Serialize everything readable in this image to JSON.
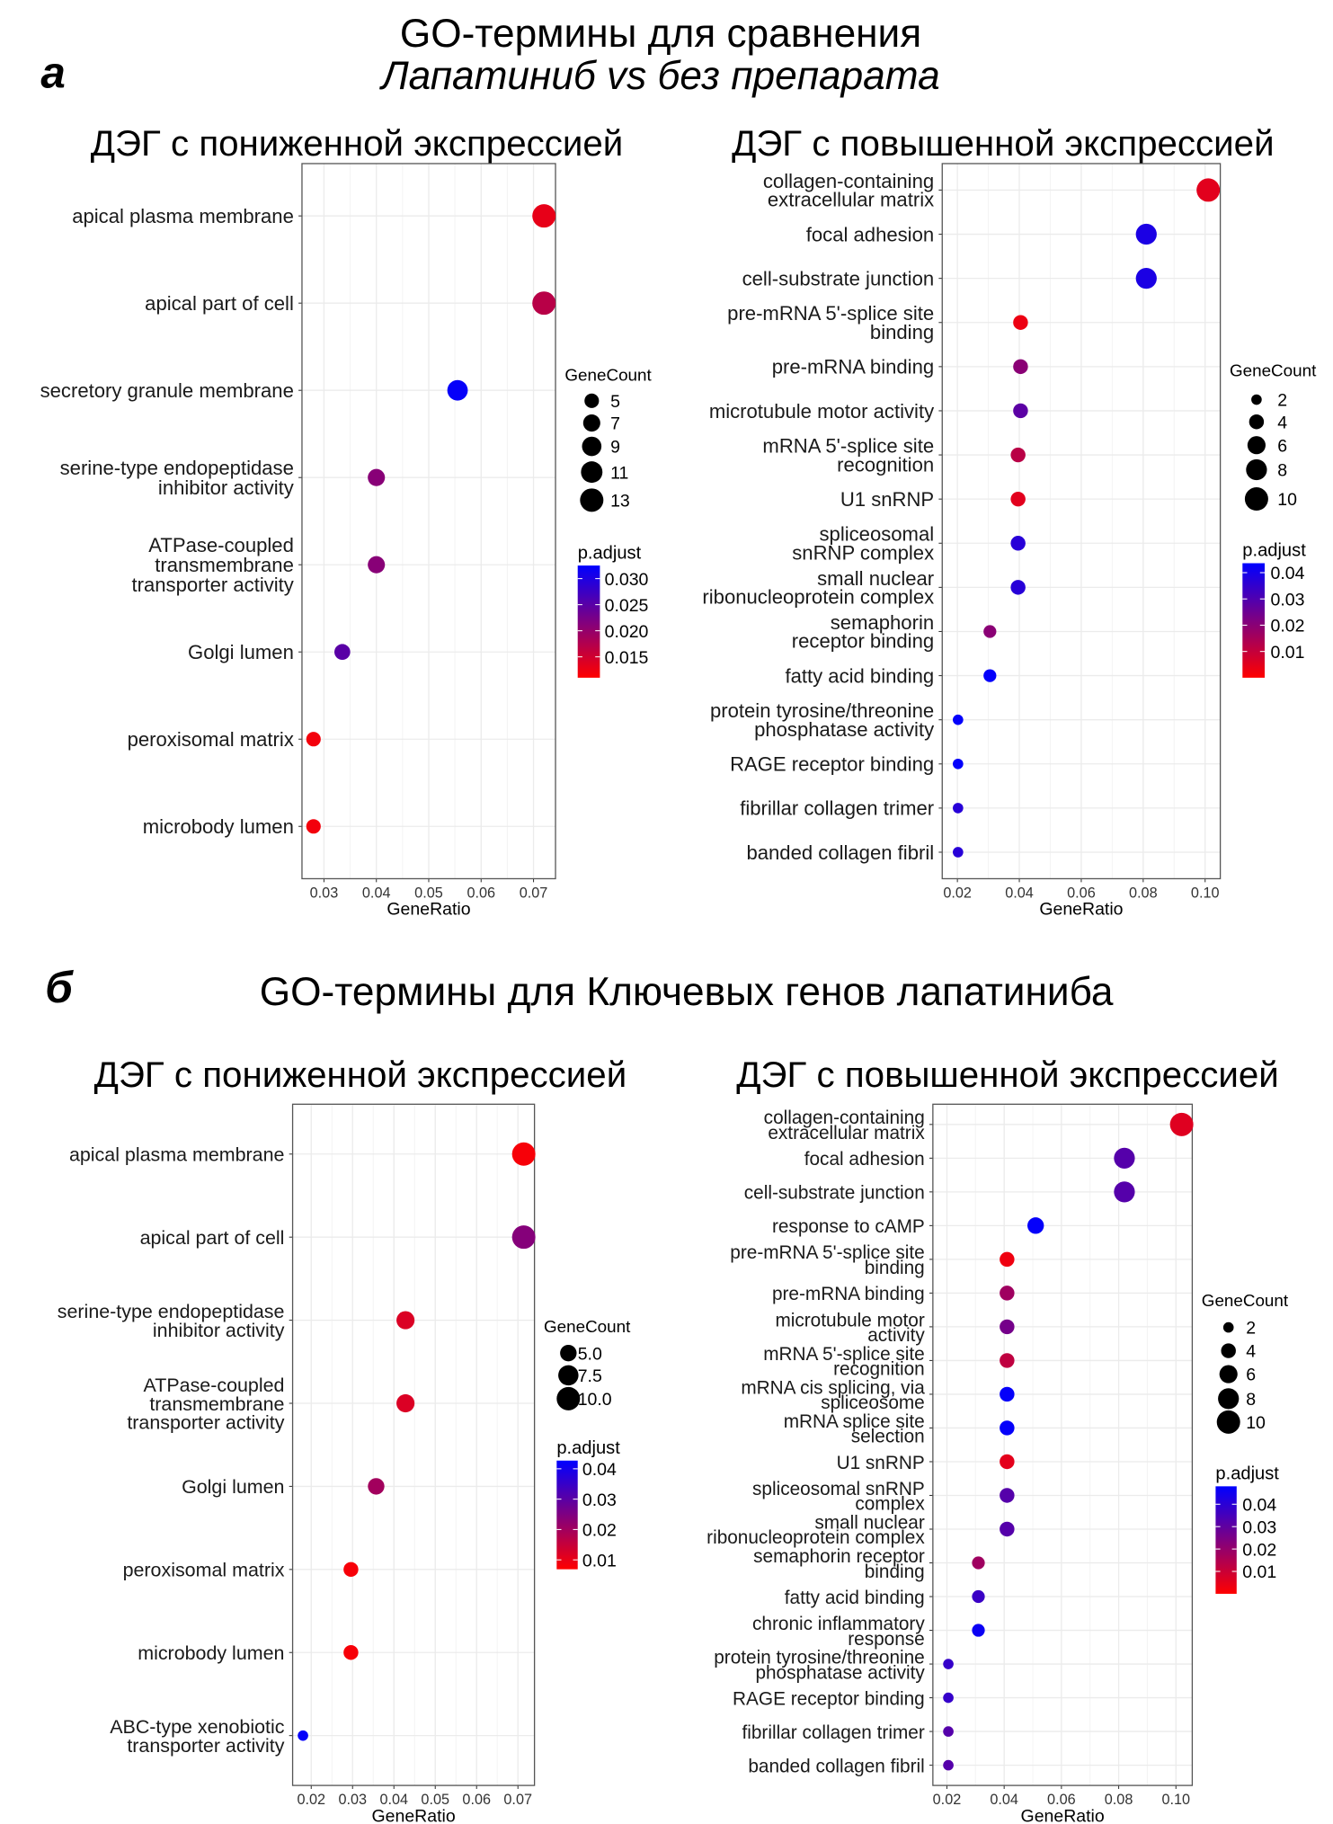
{
  "header_a": {
    "label": "а",
    "line1": "GO-термины для сравнения",
    "line2": "Лапатиниб vs без препарата"
  },
  "header_b": {
    "label": "б",
    "title": "GO-термины для Ключевых генов лапатиниба"
  },
  "colors": {
    "low": "#FF0000",
    "high": "#0000FF",
    "grid": "#EBEBEB",
    "border": "#555555"
  },
  "chart_data": [
    {
      "type": "scatter",
      "section": "а",
      "title": "ДЭГ с пониженной экспрессией",
      "xlabel": "GeneRatio",
      "xlim": [
        0.0258,
        0.0742
      ],
      "xticks": [
        0.03,
        0.04,
        0.05,
        0.06,
        0.07
      ],
      "xtick_labels": [
        "0.03",
        "0.04",
        "0.05",
        "0.06",
        "0.07"
      ],
      "grid": true,
      "points": [
        {
          "term": "apical plasma membrane",
          "gene_ratio": 0.072,
          "gene_count": 13,
          "p_adjust": 0.013
        },
        {
          "term": "apical part of cell",
          "gene_ratio": 0.072,
          "gene_count": 13,
          "p_adjust": 0.017
        },
        {
          "term": "secretory granule membrane",
          "gene_ratio": 0.0555,
          "gene_count": 10,
          "p_adjust": 0.032
        },
        {
          "term": "serine-type endopeptidase\ninhibitor activity",
          "gene_ratio": 0.04,
          "gene_count": 7,
          "p_adjust": 0.021
        },
        {
          "term": "ATPase-coupled\ntransmembrane\ntransporter activity",
          "gene_ratio": 0.04,
          "gene_count": 7,
          "p_adjust": 0.021
        },
        {
          "term": "Golgi lumen",
          "gene_ratio": 0.0335,
          "gene_count": 6,
          "p_adjust": 0.025
        },
        {
          "term": "peroxisomal matrix",
          "gene_ratio": 0.028,
          "gene_count": 5,
          "p_adjust": 0.012
        },
        {
          "term": "microbody lumen",
          "gene_ratio": 0.028,
          "gene_count": 5,
          "p_adjust": 0.012
        }
      ],
      "size_legend": {
        "title": "GeneCount",
        "breaks": [
          5,
          7,
          9,
          11,
          13
        ],
        "labels": [
          "5",
          "7",
          "9",
          "11",
          "13"
        ]
      },
      "color_legend": {
        "title": "p.adjust",
        "range": [
          0.011,
          0.0325
        ],
        "breaks": [
          0.03,
          0.025,
          0.02,
          0.015
        ],
        "labels": [
          "0.030",
          "0.025",
          "0.020",
          "0.015"
        ]
      }
    },
    {
      "type": "scatter",
      "section": "а",
      "title": "ДЭГ с повышенной экспрессией",
      "xlabel": "GeneRatio",
      "xlim": [
        0.0151,
        0.1049
      ],
      "xticks": [
        0.02,
        0.04,
        0.06,
        0.08,
        0.1
      ],
      "xtick_labels": [
        "0.02",
        "0.04",
        "0.06",
        "0.08",
        "0.10"
      ],
      "grid": true,
      "points": [
        {
          "term": "collagen-containing\nextracellular matrix",
          "gene_ratio": 0.101,
          "gene_count": 10,
          "p_adjust": 0.005
        },
        {
          "term": "focal adhesion",
          "gene_ratio": 0.081,
          "gene_count": 8,
          "p_adjust": 0.039
        },
        {
          "term": "cell-substrate junction",
          "gene_ratio": 0.081,
          "gene_count": 8,
          "p_adjust": 0.039
        },
        {
          "term": "pre-mRNA 5'-splice site\nbinding",
          "gene_ratio": 0.0404,
          "gene_count": 4,
          "p_adjust": 0.003
        },
        {
          "term": "pre-mRNA binding",
          "gene_ratio": 0.0404,
          "gene_count": 4,
          "p_adjust": 0.02
        },
        {
          "term": "microtubule motor activity",
          "gene_ratio": 0.0404,
          "gene_count": 4,
          "p_adjust": 0.028
        },
        {
          "term": "mRNA 5'-splice site\nrecognition",
          "gene_ratio": 0.0396,
          "gene_count": 4,
          "p_adjust": 0.012
        },
        {
          "term": "U1 snRNP",
          "gene_ratio": 0.0396,
          "gene_count": 4,
          "p_adjust": 0.005
        },
        {
          "term": "spliceosomal\nsnRNP complex",
          "gene_ratio": 0.0396,
          "gene_count": 4,
          "p_adjust": 0.037
        },
        {
          "term": "small nuclear\nribonucleoprotein complex",
          "gene_ratio": 0.0396,
          "gene_count": 4,
          "p_adjust": 0.037
        },
        {
          "term": "semaphorin\nreceptor binding",
          "gene_ratio": 0.0305,
          "gene_count": 3,
          "p_adjust": 0.02
        },
        {
          "term": "fatty acid binding",
          "gene_ratio": 0.0305,
          "gene_count": 3,
          "p_adjust": 0.043
        },
        {
          "term": "protein tyrosine/threonine\nphosphatase activity",
          "gene_ratio": 0.0202,
          "gene_count": 2,
          "p_adjust": 0.043
        },
        {
          "term": "RAGE receptor binding",
          "gene_ratio": 0.0202,
          "gene_count": 2,
          "p_adjust": 0.043
        },
        {
          "term": "fibrillar collagen trimer",
          "gene_ratio": 0.0202,
          "gene_count": 2,
          "p_adjust": 0.037
        },
        {
          "term": "banded collagen fibril",
          "gene_ratio": 0.0202,
          "gene_count": 2,
          "p_adjust": 0.037
        }
      ],
      "size_legend": {
        "title": "GeneCount",
        "breaks": [
          2,
          4,
          6,
          8,
          10
        ],
        "labels": [
          "2",
          "4",
          "6",
          "8",
          "10"
        ]
      },
      "color_legend": {
        "title": "p.adjust",
        "range": [
          0.0,
          0.0436
        ],
        "breaks": [
          0.04,
          0.03,
          0.02,
          0.01
        ],
        "labels": [
          "0.04",
          "0.03",
          "0.02",
          "0.01"
        ]
      }
    },
    {
      "type": "scatter",
      "section": "б",
      "title": "ДЭГ с пониженной экспрессией",
      "xlabel": "GeneRatio",
      "xlim": [
        0.0155,
        0.074
      ],
      "xticks": [
        0.02,
        0.03,
        0.04,
        0.05,
        0.06,
        0.07
      ],
      "xtick_labels": [
        "0.02",
        "0.03",
        "0.04",
        "0.05",
        "0.06",
        "0.07"
      ],
      "grid": true,
      "points": [
        {
          "term": "apical plasma membrane",
          "gene_ratio": 0.0714,
          "gene_count": 10,
          "p_adjust": 0.008
        },
        {
          "term": "apical part of cell",
          "gene_ratio": 0.0714,
          "gene_count": 10,
          "p_adjust": 0.024
        },
        {
          "term": "serine-type endopeptidase\ninhibitor activity",
          "gene_ratio": 0.0428,
          "gene_count": 6,
          "p_adjust": 0.012
        },
        {
          "term": "ATPase-coupled\ntransmembrane\ntransporter activity",
          "gene_ratio": 0.0428,
          "gene_count": 6,
          "p_adjust": 0.012
        },
        {
          "term": "Golgi lumen",
          "gene_ratio": 0.0357,
          "gene_count": 5,
          "p_adjust": 0.02
        },
        {
          "term": "peroxisomal matrix",
          "gene_ratio": 0.0296,
          "gene_count": 4,
          "p_adjust": 0.008
        },
        {
          "term": "microbody lumen",
          "gene_ratio": 0.0296,
          "gene_count": 4,
          "p_adjust": 0.008
        },
        {
          "term": "ABC-type xenobiotic\ntransporter activity",
          "gene_ratio": 0.018,
          "gene_count": 2,
          "p_adjust": 0.042
        }
      ],
      "size_legend": {
        "title": "GeneCount",
        "breaks": [
          5.0,
          7.5,
          10.0
        ],
        "labels": [
          "5.0",
          "7.5",
          "10.0"
        ]
      },
      "color_legend": {
        "title": "p.adjust",
        "range": [
          0.0069,
          0.0427
        ],
        "breaks": [
          0.04,
          0.03,
          0.02,
          0.01
        ],
        "labels": [
          "0.04",
          "0.03",
          "0.02",
          "0.01"
        ]
      }
    },
    {
      "type": "scatter",
      "section": "б",
      "title": "ДЭГ с повышенной экспрессией",
      "xlabel": "GeneRatio",
      "xlim": [
        0.0151,
        0.1057
      ],
      "xticks": [
        0.02,
        0.04,
        0.06,
        0.08,
        0.1
      ],
      "xtick_labels": [
        "0.02",
        "0.04",
        "0.06",
        "0.08",
        "0.10"
      ],
      "grid": true,
      "points": [
        {
          "term": "collagen-containing\nextracellular matrix",
          "gene_ratio": 0.102,
          "gene_count": 10,
          "p_adjust": 0.006
        },
        {
          "term": "focal adhesion",
          "gene_ratio": 0.082,
          "gene_count": 8,
          "p_adjust": 0.032
        },
        {
          "term": "cell-substrate junction",
          "gene_ratio": 0.082,
          "gene_count": 8,
          "p_adjust": 0.032
        },
        {
          "term": "response to cAMP",
          "gene_ratio": 0.051,
          "gene_count": 5,
          "p_adjust": 0.047
        },
        {
          "term": "pre-mRNA 5'-splice site\nbinding",
          "gene_ratio": 0.041,
          "gene_count": 4,
          "p_adjust": 0.003
        },
        {
          "term": "pre-mRNA binding",
          "gene_ratio": 0.041,
          "gene_count": 4,
          "p_adjust": 0.018
        },
        {
          "term": "microtubule motor\nactivity",
          "gene_ratio": 0.041,
          "gene_count": 4,
          "p_adjust": 0.026
        },
        {
          "term": "mRNA 5'-splice site\nrecognition",
          "gene_ratio": 0.041,
          "gene_count": 4,
          "p_adjust": 0.012
        },
        {
          "term": "mRNA cis splicing, via\nspliceosome",
          "gene_ratio": 0.041,
          "gene_count": 4,
          "p_adjust": 0.047
        },
        {
          "term": "mRNA splice site\nselection",
          "gene_ratio": 0.041,
          "gene_count": 4,
          "p_adjust": 0.047
        },
        {
          "term": "U1 snRNP",
          "gene_ratio": 0.041,
          "gene_count": 4,
          "p_adjust": 0.005
        },
        {
          "term": "spliceosomal snRNP\ncomplex",
          "gene_ratio": 0.041,
          "gene_count": 4,
          "p_adjust": 0.032
        },
        {
          "term": "small nuclear\nribonucleoprotein complex",
          "gene_ratio": 0.041,
          "gene_count": 4,
          "p_adjust": 0.032
        },
        {
          "term": "semaphorin receptor\nbinding",
          "gene_ratio": 0.031,
          "gene_count": 3,
          "p_adjust": 0.018
        },
        {
          "term": "fatty acid binding",
          "gene_ratio": 0.031,
          "gene_count": 3,
          "p_adjust": 0.037
        },
        {
          "term": "chronic inflammatory\nresponse",
          "gene_ratio": 0.031,
          "gene_count": 3,
          "p_adjust": 0.046
        },
        {
          "term": "protein tyrosine/threonine\nphosphatase activity",
          "gene_ratio": 0.0205,
          "gene_count": 2,
          "p_adjust": 0.038
        },
        {
          "term": "RAGE receptor binding",
          "gene_ratio": 0.0205,
          "gene_count": 2,
          "p_adjust": 0.038
        },
        {
          "term": "fibrillar collagen trimer",
          "gene_ratio": 0.0205,
          "gene_count": 2,
          "p_adjust": 0.032
        },
        {
          "term": "banded collagen fibril",
          "gene_ratio": 0.0205,
          "gene_count": 2,
          "p_adjust": 0.032
        }
      ],
      "size_legend": {
        "title": "GeneCount",
        "breaks": [
          2,
          4,
          6,
          8,
          10
        ],
        "labels": [
          "2",
          "4",
          "6",
          "8",
          "10"
        ]
      },
      "color_legend": {
        "title": "p.adjust",
        "range": [
          0.0,
          0.048
        ],
        "breaks": [
          0.04,
          0.03,
          0.02,
          0.01
        ],
        "labels": [
          "0.04",
          "0.03",
          "0.02",
          "0.01"
        ]
      }
    }
  ]
}
